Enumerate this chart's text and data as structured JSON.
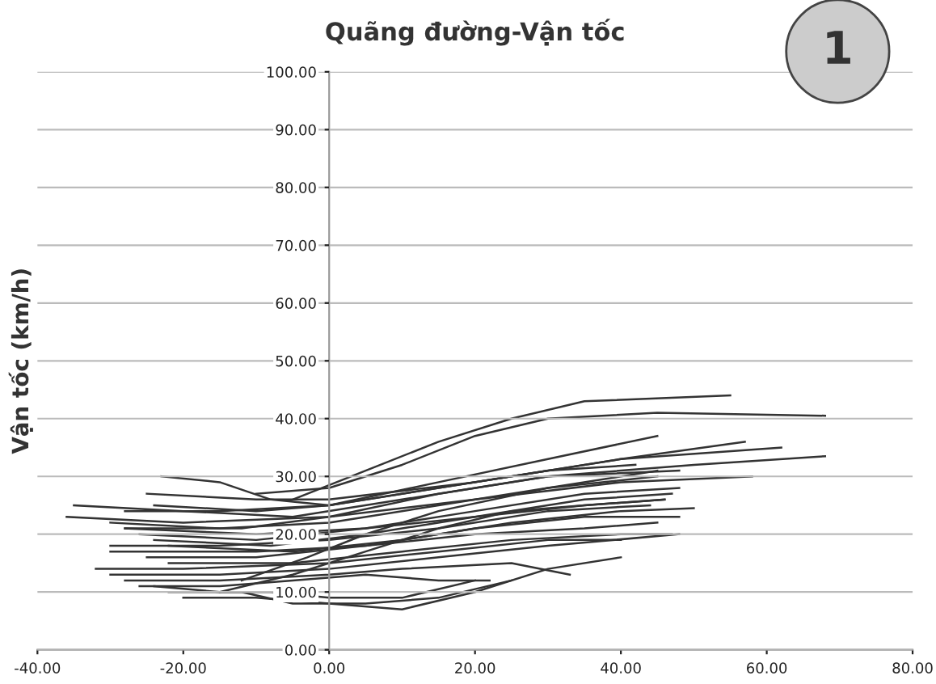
{
  "chart_data": {
    "type": "line",
    "title": "Quãng đường-Vận tốc",
    "ylabel": "Vận tốc (km/h)",
    "annotations": [
      "1"
    ],
    "xlim": [
      -40,
      80
    ],
    "ylim": [
      0,
      100
    ],
    "xticks": [
      {
        "value": -40,
        "label": "-40.00"
      },
      {
        "value": -20,
        "label": "-20.00"
      },
      {
        "value": 0,
        "label": "0.00"
      },
      {
        "value": 20,
        "label": "20.00"
      },
      {
        "value": 40,
        "label": "40.00"
      },
      {
        "value": 60,
        "label": "60.00"
      },
      {
        "value": 80,
        "label": "80.00"
      }
    ],
    "yticks": [
      {
        "value": 0,
        "label": "0.00"
      },
      {
        "value": 10,
        "label": "10.00"
      },
      {
        "value": 20,
        "label": "20.00"
      },
      {
        "value": 30,
        "label": "30.00"
      },
      {
        "value": 40,
        "label": "40.00"
      },
      {
        "value": 50,
        "label": "50.00"
      },
      {
        "value": 60,
        "label": "60.00"
      },
      {
        "value": 70,
        "label": "70.00"
      },
      {
        "value": 80,
        "label": "80.00"
      },
      {
        "value": 90,
        "label": "90.00"
      },
      {
        "value": 100,
        "label": "100.00"
      }
    ],
    "grid": "y",
    "legend": false,
    "marker": "none",
    "line_style": "solid",
    "series": [
      {
        "color": "#333333",
        "x": [
          -5,
          5,
          15,
          25,
          35,
          55
        ],
        "values": [
          26,
          31,
          36,
          40,
          43,
          44
        ]
      },
      {
        "color": "#333333",
        "x": [
          -10,
          0,
          10,
          20,
          30,
          45,
          68
        ],
        "values": [
          27,
          28,
          32,
          37,
          40,
          41,
          40.5
        ]
      },
      {
        "color": "#333333",
        "x": [
          -23,
          -15,
          -8,
          0,
          15,
          30,
          45
        ],
        "values": [
          30,
          29,
          26,
          25,
          29,
          33,
          37
        ]
      },
      {
        "color": "#333333",
        "x": [
          -25,
          -10,
          0,
          20,
          40,
          57
        ],
        "values": [
          27,
          26,
          26,
          29,
          33,
          36
        ]
      },
      {
        "color": "#333333",
        "x": [
          -24,
          -10,
          0,
          20,
          40,
          62
        ],
        "values": [
          25,
          24,
          25,
          29,
          33,
          35
        ]
      },
      {
        "color": "#333333",
        "x": [
          -35,
          -20,
          -5,
          10,
          30,
          50,
          68
        ],
        "values": [
          25,
          24,
          23,
          26,
          30,
          32,
          33.5
        ]
      },
      {
        "color": "#333333",
        "x": [
          -36,
          -20,
          0,
          20,
          40,
          58
        ],
        "values": [
          23,
          22,
          23,
          26,
          29,
          30
        ]
      },
      {
        "color": "#333333",
        "x": [
          -30,
          -15,
          0,
          15,
          30,
          45
        ],
        "values": [
          22,
          21,
          22,
          25,
          28,
          31
        ]
      },
      {
        "color": "#333333",
        "x": [
          -28,
          -10,
          5,
          20,
          35,
          48
        ],
        "values": [
          21,
          20,
          21,
          24,
          27,
          28
        ]
      },
      {
        "color": "#333333",
        "x": [
          -26,
          -10,
          5,
          20,
          35,
          47
        ],
        "values": [
          20,
          19,
          21,
          23,
          26,
          27
        ]
      },
      {
        "color": "#333333",
        "x": [
          -24,
          -8,
          5,
          20,
          35,
          46
        ],
        "values": [
          19,
          18,
          20,
          23,
          25,
          26
        ]
      },
      {
        "color": "#333333",
        "x": [
          -30,
          -15,
          0,
          15,
          30,
          44
        ],
        "values": [
          18,
          18,
          19,
          21,
          24,
          25
        ]
      },
      {
        "color": "#333333",
        "x": [
          -22,
          -5,
          10,
          25,
          40,
          50
        ],
        "values": [
          18,
          17,
          19,
          22,
          24,
          24.5
        ]
      },
      {
        "color": "#333333",
        "x": [
          -30,
          -10,
          5,
          20,
          35,
          48
        ],
        "values": [
          17,
          17,
          18,
          21,
          23,
          23
        ]
      },
      {
        "color": "#333333",
        "x": [
          -25,
          -10,
          5,
          20,
          35,
          45
        ],
        "values": [
          16,
          16,
          18,
          20,
          21,
          22
        ]
      },
      {
        "color": "#333333",
        "x": [
          -22,
          -5,
          10,
          25,
          40,
          47
        ],
        "values": [
          15,
          15,
          17,
          19,
          20,
          20
        ]
      },
      {
        "color": "#333333",
        "x": [
          -32,
          -20,
          0,
          15,
          30,
          40
        ],
        "values": [
          14,
          14,
          15,
          17,
          19,
          19
        ]
      },
      {
        "color": "#333333",
        "x": [
          -30,
          -15,
          0,
          15,
          30,
          48
        ],
        "values": [
          13,
          13,
          14,
          16,
          18,
          20
        ]
      },
      {
        "color": "#333333",
        "x": [
          -28,
          -15,
          0,
          10,
          25,
          33
        ],
        "values": [
          12,
          12,
          13,
          14,
          15,
          13
        ]
      },
      {
        "color": "#333333",
        "x": [
          -26,
          -15,
          -5,
          5,
          15,
          22
        ],
        "values": [
          11,
          11,
          12,
          13,
          12,
          12
        ]
      },
      {
        "color": "#333333",
        "x": [
          -24,
          -15,
          -8,
          0,
          10,
          20
        ],
        "values": [
          11,
          10,
          10,
          9,
          9,
          12
        ]
      },
      {
        "color": "#333333",
        "x": [
          -22,
          -12,
          -5,
          5,
          15,
          25
        ],
        "values": [
          10,
          10,
          8,
          8,
          9,
          12
        ]
      },
      {
        "color": "#333333",
        "x": [
          -20,
          -10,
          0,
          10,
          20,
          30,
          40
        ],
        "values": [
          9,
          9,
          8,
          7,
          10,
          14,
          16
        ]
      },
      {
        "color": "#333333",
        "x": [
          -15,
          -5,
          5,
          15,
          25,
          35,
          46
        ],
        "values": [
          10,
          13,
          17,
          21,
          24,
          25,
          26
        ]
      },
      {
        "color": "#333333",
        "x": [
          -12,
          -3,
          5,
          15,
          30,
          45
        ],
        "values": [
          12,
          16,
          20,
          24,
          28,
          30
        ]
      },
      {
        "color": "#333333",
        "x": [
          -28,
          -15,
          0,
          15,
          30,
          42
        ],
        "values": [
          24,
          24,
          25,
          28,
          31,
          32
        ]
      },
      {
        "color": "#333333",
        "x": [
          -28,
          -12,
          0,
          15,
          30,
          48
        ],
        "values": [
          21,
          21,
          23,
          27,
          30,
          31
        ]
      }
    ]
  }
}
